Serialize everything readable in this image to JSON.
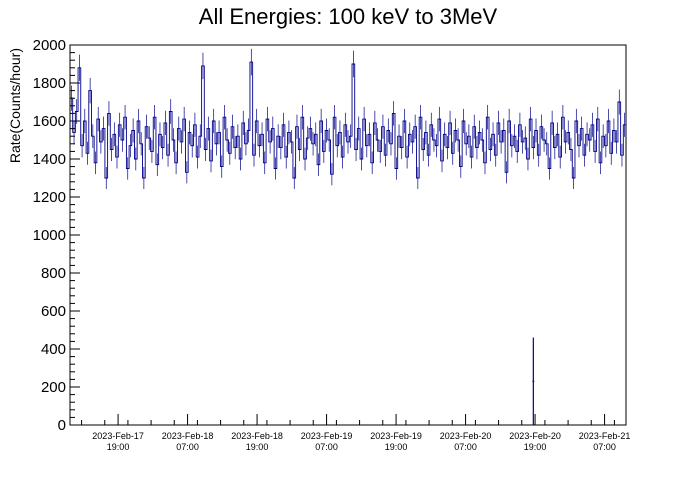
{
  "chart_data": {
    "type": "line",
    "title": "All Energies:  100 keV to 3MeV",
    "ylabel": "Rate(Counts/hour)",
    "xlabel": "",
    "ylim": [
      0,
      2000
    ],
    "y_ticks": [
      0,
      200,
      400,
      600,
      800,
      1000,
      1200,
      1400,
      1600,
      1800,
      2000
    ],
    "x_range_hours": [
      0,
      96
    ],
    "x_ticks": [
      {
        "hours": 8.3,
        "date": "2023-Feb-17",
        "time": "19:00"
      },
      {
        "hours": 20.3,
        "date": "2023-Feb-18",
        "time": "07:00"
      },
      {
        "hours": 32.3,
        "date": "2023-Feb-18",
        "time": "19:00"
      },
      {
        "hours": 44.3,
        "date": "2023-Feb-19",
        "time": "07:00"
      },
      {
        "hours": 56.3,
        "date": "2023-Feb-19",
        "time": "19:00"
      },
      {
        "hours": 68.3,
        "date": "2023-Feb-20",
        "time": "07:00"
      },
      {
        "hours": 80.3,
        "date": "2023-Feb-20",
        "time": "19:00"
      },
      {
        "hours": 92.3,
        "date": "2023-Feb-21",
        "time": "07:00"
      }
    ],
    "series": [
      {
        "color": "#00008b",
        "typical_range": [
          1300,
          1750
        ],
        "values": [
          1720,
          1540,
          1650,
          1880,
          1470,
          1600,
          1430,
          1760,
          1520,
          1380,
          1610,
          1490,
          1560,
          1300,
          1640,
          1450,
          1530,
          1410,
          1580,
          1500,
          1620,
          1350,
          1470,
          1550,
          1400,
          1600,
          1480,
          1300,
          1570,
          1510,
          1440,
          1620,
          1370,
          1530,
          1460,
          1590,
          1420,
          1650,
          1500,
          1380,
          1560,
          1490,
          1610,
          1330,
          1540,
          1470,
          1580,
          1410,
          1520,
          1890,
          1450,
          1560,
          1390,
          1600,
          1480,
          1540,
          1360,
          1620,
          1500,
          1430,
          1570,
          1460,
          1520,
          1400,
          1590,
          1480,
          1550,
          1910,
          1420,
          1600,
          1470,
          1530,
          1380,
          1610,
          1490,
          1560,
          1350,
          1520,
          1460,
          1580,
          1410,
          1540,
          1490,
          1300,
          1570,
          1450,
          1620,
          1400,
          1510,
          1560,
          1480,
          1530,
          1370,
          1600,
          1440,
          1550,
          1500,
          1320,
          1620,
          1470,
          1540,
          1410,
          1580,
          1490,
          1520,
          1900,
          1450,
          1560,
          1400,
          1610,
          1470,
          1530,
          1380,
          1590,
          1500,
          1440,
          1570,
          1420,
          1550,
          1480,
          1640,
          1350,
          1520,
          1460,
          1600,
          1410,
          1530,
          1490,
          1570,
          1300,
          1620,
          1450,
          1540,
          1420,
          1580,
          1500,
          1470,
          1610,
          1390,
          1530,
          1460,
          1590,
          1430,
          1550,
          1500,
          1360,
          1600,
          1480,
          1520,
          1410,
          1570,
          1460,
          1540,
          1500,
          1380,
          1620,
          1450,
          1530,
          1420,
          1590,
          1490,
          1550,
          1330,
          1600,
          1470,
          1520,
          1440,
          1580,
          1490,
          1510,
          1400,
          1610,
          1460,
          1550,
          1420,
          1570,
          1500,
          1480,
          1350,
          1590,
          1460,
          1530,
          1410,
          1620,
          1490,
          1540,
          1450,
          1300,
          1600,
          1470,
          1560,
          1420,
          1530,
          1500,
          1580,
          1440,
          1610,
          1380,
          1520,
          1470,
          1600,
          1430,
          1550,
          1490,
          1700,
          1420,
          1580
        ]
      }
    ],
    "spike": {
      "hours": 80.0,
      "value": 460
    },
    "grid": false,
    "legend": "none"
  }
}
